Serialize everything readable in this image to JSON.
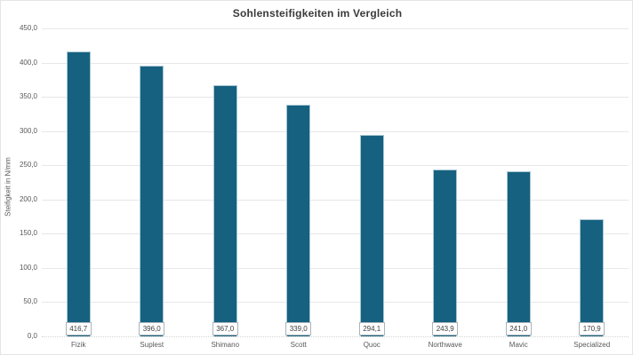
{
  "title": "Sohlensteifigkeiten im Vergleich",
  "y_axis_title": "Steifigkeit in N/mm",
  "chart_data": {
    "type": "bar",
    "title": "Sohlensteifigkeiten im Vergleich",
    "xlabel": "",
    "ylabel": "Steifigkeit in N/mm",
    "categories": [
      "Fizik",
      "Suplest",
      "Shimano",
      "Scott",
      "Quoc",
      "Northwave",
      "Mavic",
      "Specialized"
    ],
    "values": [
      416.7,
      396.0,
      367.0,
      339.0,
      294.1,
      243.9,
      241.0,
      170.9
    ],
    "value_labels": [
      "416,7",
      "396,0",
      "367,0",
      "339,0",
      "294,1",
      "243,9",
      "241,0",
      "170,9"
    ],
    "ylim": [
      0,
      450
    ],
    "y_tick_step": 50,
    "y_tick_labels": [
      "0,0",
      "50,0",
      "100,0",
      "150,0",
      "200,0",
      "250,0",
      "300,0",
      "350,0",
      "400,0",
      "450,0"
    ],
    "grid": true,
    "legend": false,
    "data_label_position": "inside-base",
    "series_name": ""
  },
  "colors": {
    "bar_fill": "#16617f",
    "bar_border": "#a9c7d5",
    "gridline": "#e7e7e7",
    "axis_text": "#595959",
    "title_text": "#3a3a3a",
    "value_label_text": "#404040",
    "value_label_border": "#aab4ba",
    "value_label_fill": "#ffffff",
    "background": "#ffffff"
  }
}
